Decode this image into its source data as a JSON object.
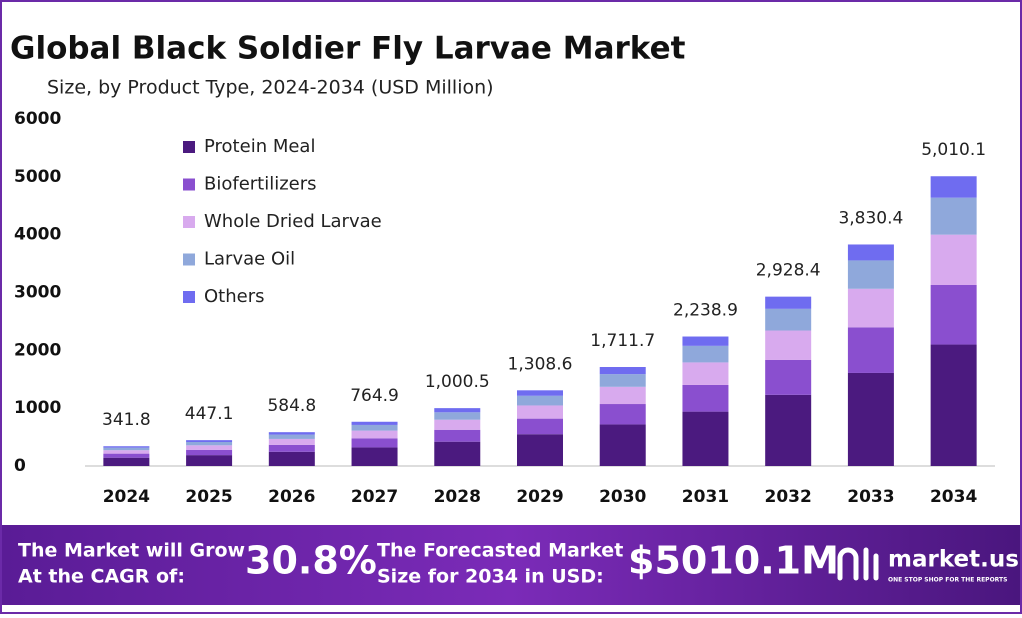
{
  "chart_data": {
    "type": "stacked_bar",
    "title": "Global Black Soldier Fly Larvae Market",
    "subtitle": "Size, by Product Type, 2024-2034 (USD Million)",
    "categories": [
      "2024",
      "2025",
      "2026",
      "2027",
      "2028",
      "2029",
      "2030",
      "2031",
      "2032",
      "2033",
      "2034"
    ],
    "series": [
      {
        "name": "Protein Meal",
        "color": "#4b1a7f",
        "values": [
          143.6,
          187.8,
          245.6,
          321.3,
          420.2,
          549.6,
          718.9,
          940.3,
          1230,
          1608.8,
          2100
        ]
      },
      {
        "name": "Biofertilizers",
        "color": "#8a4fcf",
        "values": [
          70.4,
          92.1,
          120.5,
          157.6,
          206.1,
          269.6,
          352.6,
          461.2,
          603.3,
          789.1,
          1030
        ]
      },
      {
        "name": "Whole Dried Larvae",
        "color": "#d8aaee",
        "values": [
          59.5,
          77.8,
          101.8,
          133.1,
          174.1,
          227.7,
          297.8,
          389.6,
          509.5,
          666.5,
          870
        ]
      },
      {
        "name": "Larvae Oil",
        "color": "#8fa8db",
        "values": [
          43.8,
          57.2,
          74.9,
          97.9,
          128.1,
          167.5,
          219.1,
          286.6,
          374.8,
          490.3,
          640
        ]
      },
      {
        "name": "Others",
        "color": "#6f6cf0",
        "values": [
          24.5,
          32.2,
          42,
          55,
          72,
          94.2,
          123.3,
          161.2,
          210.8,
          275.7,
          370.1
        ]
      }
    ],
    "totals": [
      341.8,
      447.1,
      584.8,
      764.9,
      {
        "value": 1000.5,
        "label": "1,000.5"
      },
      {
        "value": 1308.6,
        "label": "1,308.6"
      },
      {
        "value": 1711.7,
        "label": "1,711.7"
      },
      {
        "value": 2238.9,
        "label": "2,238.9"
      },
      {
        "value": 2928.4,
        "label": "2,928.4"
      },
      {
        "value": 3830.4,
        "label": "3,830.4"
      },
      {
        "value": 5010.1,
        "label": "5,010.1"
      }
    ],
    "ylim": [
      0,
      6000
    ],
    "yticks": [
      0,
      1000,
      2000,
      3000,
      4000,
      5000,
      6000
    ],
    "grid": false
  },
  "banner": {
    "grow_line1": "The Market will Grow",
    "grow_line2": "At the CAGR of:",
    "cagr": "30.8%",
    "forecast_line1": "The Forecasted Market",
    "forecast_line2": "Size for 2034 in USD:",
    "forecast": "$5010.1M",
    "brand": "market.us",
    "tagline": "ONE STOP SHOP FOR THE REPORTS"
  }
}
